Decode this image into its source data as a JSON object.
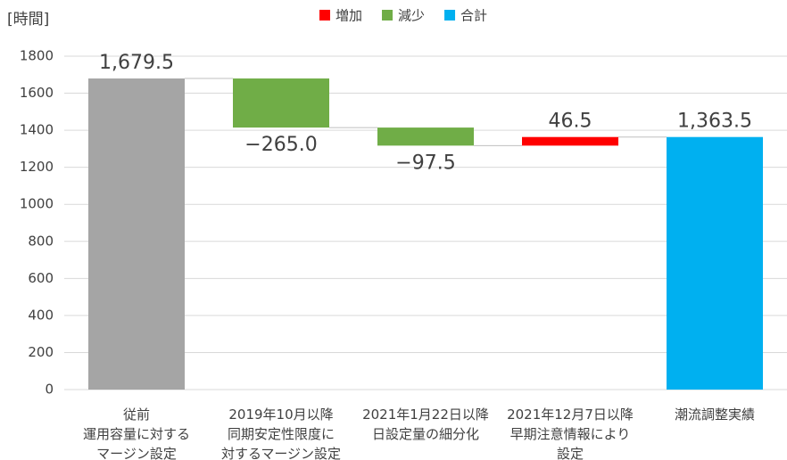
{
  "chart_data": {
    "type": "waterfall",
    "y_axis_label": "[時間]",
    "categories": [
      "従前\n運用容量に対する\nマージン設定",
      "2019年10月以降\n同期安定性限度に\n対するマージン設定",
      "2021年1月22日以降\n日設定量の細分化",
      "2021年12月7日以降\n早期注意情報により\n設定",
      "潮流調整実績"
    ],
    "values": [
      1679.5,
      -265.0,
      -97.5,
      46.5,
      1363.5
    ],
    "value_labels": [
      "1,679.5",
      "−265.0",
      "−97.5",
      "46.5",
      "1,363.5"
    ],
    "is_total": [
      true,
      false,
      false,
      false,
      true
    ],
    "bar_colors": [
      "#a5a5a5",
      "#70ad47",
      "#70ad47",
      "#ff0000",
      "#00b0f0"
    ],
    "legend": [
      {
        "name": "増加",
        "color": "#ff0000"
      },
      {
        "name": "減少",
        "color": "#70ad47"
      },
      {
        "name": "合計",
        "color": "#00b0f0"
      }
    ],
    "ylim": [
      0,
      1800
    ],
    "yticks": [
      0,
      200,
      400,
      600,
      800,
      1000,
      1200,
      1400,
      1600,
      1800
    ],
    "grid": true
  }
}
